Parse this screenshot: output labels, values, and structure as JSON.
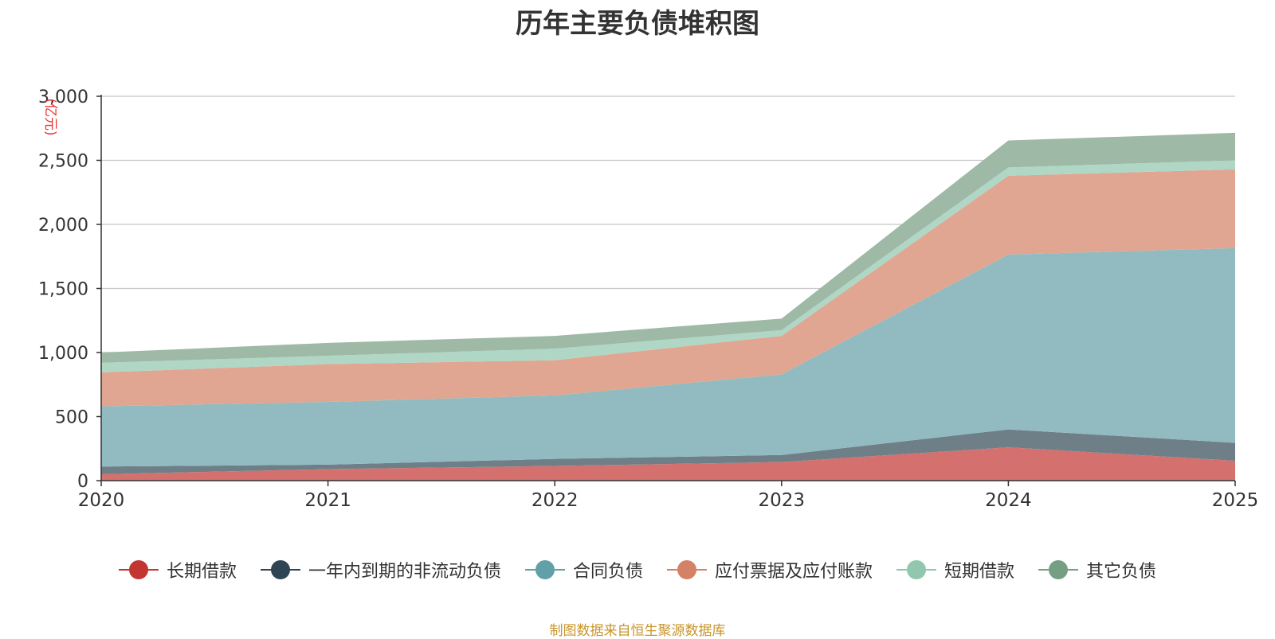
{
  "chart_data": {
    "type": "area",
    "stacked": true,
    "title": "历年主要负债堆积图",
    "ylabel": "(亿元)",
    "x": [
      "2020",
      "2021",
      "2022",
      "2023",
      "2024",
      "2025"
    ],
    "ylim": [
      0,
      3000
    ],
    "yticks": [
      0,
      500,
      1000,
      1500,
      2000,
      2500,
      3000
    ],
    "ytick_labels": [
      "0",
      "500",
      "1,000",
      "1,500",
      "2,000",
      "2,500",
      "3,000"
    ],
    "grid": true,
    "legend_position": "bottom",
    "series": [
      {
        "name": "长期借款",
        "color": "#c23531",
        "fill": "#d4716e",
        "values": [
          50,
          90,
          115,
          145,
          260,
          155
        ]
      },
      {
        "name": "一年内到期的非流动负债",
        "color": "#2f4554",
        "fill": "#6f7f88",
        "values": [
          60,
          35,
          55,
          55,
          140,
          140
        ]
      },
      {
        "name": "合同负债",
        "color": "#61a0a8",
        "fill": "#91bbc1",
        "values": [
          470,
          490,
          495,
          630,
          1365,
          1520
        ]
      },
      {
        "name": "应付票据及应付账款",
        "color": "#d48265",
        "fill": "#e0a691",
        "values": [
          265,
          295,
          275,
          300,
          615,
          615
        ]
      },
      {
        "name": "短期借款",
        "color": "#91c7ae",
        "fill": "#b0d6c5",
        "values": [
          75,
          65,
          90,
          45,
          65,
          70
        ]
      },
      {
        "name": "其它负债",
        "color": "#749f83",
        "fill": "#9eb9a6",
        "values": [
          80,
          100,
          100,
          90,
          210,
          215
        ]
      }
    ]
  },
  "source_note": "制图数据来自恒生聚源数据库"
}
